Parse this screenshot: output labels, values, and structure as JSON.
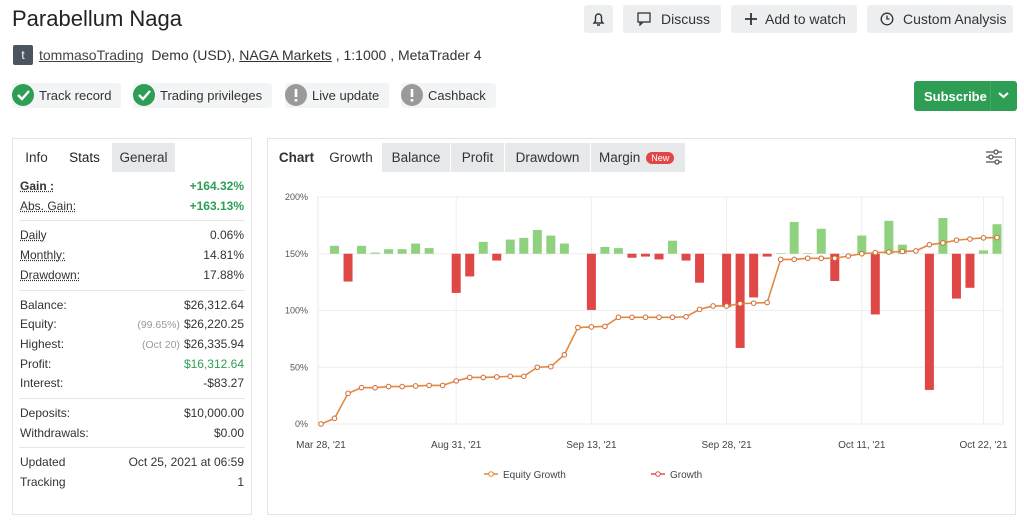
{
  "header": {
    "title": "Parabellum Naga",
    "buttons": [
      "Discuss",
      "Add to watch",
      "Custom Analysis"
    ],
    "avatar": "t",
    "user": "tommasoTrading",
    "account": "Demo (USD),",
    "broker": "NAGA Markets",
    "details": ", 1:1000 , MetaTrader 4"
  },
  "badges": [
    {
      "label": "Track record",
      "ok": true
    },
    {
      "label": "Trading privileges",
      "ok": true
    },
    {
      "label": "Live update",
      "ok": false
    },
    {
      "label": "Cashback",
      "ok": false
    }
  ],
  "subscribe": "Subscribe",
  "stats": {
    "tabs": [
      "Info",
      "Stats",
      "General"
    ],
    "active": 1,
    "groups": [
      [
        {
          "label": "Gain :",
          "value": "+164.32%",
          "highlight": true
        },
        {
          "label": "Abs. Gain:",
          "value": "+163.13%",
          "highlight": true
        }
      ],
      [
        {
          "label": "Daily",
          "value": "0.06%"
        },
        {
          "label": "Monthly:",
          "value": "14.81%"
        },
        {
          "label": "Drawdown:",
          "value": "17.88%"
        }
      ],
      [
        {
          "label": "Balance:",
          "value": "$26,312.64"
        },
        {
          "label": "Equity:",
          "note": "(99.65%)",
          "value": "$26,220.25"
        },
        {
          "label": "Highest:",
          "note": "(Oct 20)",
          "value": "$26,335.94"
        },
        {
          "label": "Profit:",
          "value": "$16,312.64",
          "highlight": true
        },
        {
          "label": "Interest:",
          "value": "-$83.27"
        }
      ],
      [
        {
          "label": "Deposits:",
          "value": "$10,000.00"
        },
        {
          "label": "Withdrawals:",
          "value": "$0.00"
        }
      ],
      [
        {
          "label": "Updated",
          "value": "Oct 25, 2021 at 06:59"
        },
        {
          "label": "Tracking",
          "value": "1"
        }
      ]
    ]
  },
  "chart_tabs": {
    "label": "Chart",
    "tabs": [
      "Growth",
      "Balance",
      "Profit",
      "Drawdown",
      "Margin"
    ],
    "active": 0,
    "new_badge": "New"
  },
  "chart_data": {
    "type": "line",
    "categories": [
      "Mar 28, '21",
      null,
      null,
      null,
      null,
      null,
      null,
      null,
      null,
      null,
      "Aug 31, '21",
      null,
      null,
      null,
      null,
      null,
      null,
      null,
      null,
      null,
      "Sep 13, '21",
      null,
      null,
      null,
      null,
      null,
      null,
      null,
      null,
      null,
      "Sep 28, '21",
      null,
      null,
      null,
      null,
      null,
      null,
      null,
      null,
      null,
      "Oct 11, '21",
      null,
      null,
      null,
      null,
      null,
      null,
      null,
      null,
      "Oct 22, '21",
      null
    ],
    "series": [
      {
        "name": "Equity Growth",
        "color": "#e3893d",
        "values": [
          0,
          5,
          27,
          32,
          32,
          33,
          33,
          33.5,
          34,
          34,
          38,
          41,
          41,
          41.5,
          42,
          42,
          50,
          50.5,
          61,
          85,
          85.5,
          86,
          94,
          94,
          94,
          94,
          94,
          94.5,
          101,
          104,
          104,
          106,
          106.5,
          107,
          145,
          145,
          146,
          146,
          146,
          148,
          150,
          151,
          151.5,
          152,
          152.5,
          158,
          159.5,
          162,
          163,
          164,
          164.3
        ]
      },
      {
        "name": "Growth",
        "type": "bar",
        "axis": "y2",
        "color": "#d9534f",
        "positive_color": "#90d17f",
        "negative_color": "#e04848",
        "values": [
          0,
          1.4,
          -4.9,
          1.4,
          0.2,
          0.8,
          0.8,
          1.8,
          1.0,
          0,
          -6.9,
          -4,
          2.1,
          -1.2,
          2.5,
          2.8,
          4.2,
          3.2,
          1.8,
          0,
          -9.9,
          1.2,
          1.0,
          -0.7,
          -0.5,
          -1.0,
          2.3,
          -1.2,
          -5.1,
          0,
          -9.4,
          -16.6,
          -7.7,
          -0.5,
          0.1,
          5.6,
          0.1,
          4.4,
          -4.8,
          0,
          3.2,
          -10.7,
          5.8,
          1.6,
          0,
          -24,
          6.3,
          -7.9,
          -6,
          0.6,
          5.2
        ]
      }
    ],
    "ylim": [
      0,
      200
    ],
    "yticks": [
      {
        "value": 0,
        "label": "0%"
      },
      {
        "value": 50,
        "label": "50%"
      },
      {
        "value": 100,
        "label": "100%"
      },
      {
        "value": 150,
        "label": "150%"
      },
      {
        "value": 200,
        "label": "200%"
      }
    ],
    "y2lim": [
      -30,
      10
    ],
    "grid": true
  }
}
